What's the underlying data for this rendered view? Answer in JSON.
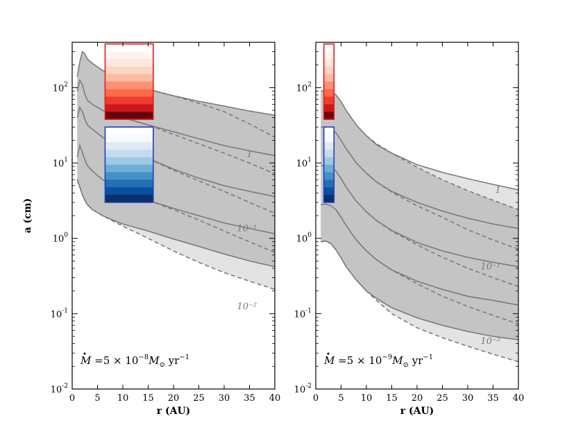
{
  "chart_data": [
    {
      "type": "area",
      "panel": "left",
      "ylabel": "a (cm)",
      "xlabel": "r (AU)",
      "xlim": [
        0,
        40
      ],
      "ylim": [
        0.01,
        400
      ],
      "yscale": "log",
      "x_ticks": [
        "0",
        "5",
        "10",
        "15",
        "20",
        "25",
        "30",
        "35",
        "40"
      ],
      "y_ticks": [
        {
          "base": "10",
          "exp": "2"
        },
        {
          "base": "10",
          "exp": "1"
        },
        {
          "base": "10",
          "exp": "0"
        },
        {
          "base": "10",
          "exp": "-1"
        },
        {
          "base": "10",
          "exp": "-2"
        }
      ],
      "annotation": {
        "lhs": "M",
        "eq": " =5 × 10",
        "exp": "−8",
        "unit": "M",
        "sun": "⊙",
        "yr": " yr",
        "yrexp": "−1"
      },
      "curve_labels": [
        {
          "text": "1",
          "r": 35,
          "a": 13
        },
        {
          "text": "10⁻¹",
          "r": 34.5,
          "a": 1.35
        },
        {
          "text": "10⁻²",
          "r": 34.5,
          "a": 0.125
        }
      ],
      "outer_band": {
        "x": [
          1.0,
          1.5,
          2.0,
          2.5,
          3.0,
          4.0,
          6,
          8,
          10,
          15,
          20,
          25,
          30,
          35,
          40
        ],
        "upper": [
          140,
          220,
          300,
          280,
          240,
          210,
          170,
          140,
          120,
          95,
          78,
          66,
          57,
          49,
          43
        ],
        "lower": [
          6,
          4.8,
          3.8,
          3.2,
          2.8,
          2.4,
          2.0,
          1.7,
          1.45,
          1.0,
          0.68,
          0.48,
          0.35,
          0.27,
          0.21
        ]
      },
      "inner_band": {
        "x": [
          1.0,
          1.5,
          2.0,
          2.5,
          3.0,
          4.0,
          6,
          8,
          10,
          15,
          20,
          25,
          30,
          35,
          40
        ],
        "upper": [
          140,
          220,
          300,
          280,
          240,
          210,
          170,
          140,
          120,
          95,
          78,
          66,
          57,
          49,
          43
        ],
        "lower": [
          6,
          4.8,
          3.8,
          3.2,
          2.8,
          2.4,
          2.0,
          1.75,
          1.55,
          1.25,
          0.98,
          0.78,
          0.62,
          0.5,
          0.42
        ]
      },
      "solid_curves": [
        {
          "x": [
            1.0,
            1.5,
            2.0,
            2.5,
            3.0,
            4.0,
            6,
            8,
            10,
            15,
            20,
            25,
            30,
            35,
            40
          ],
          "y": [
            90,
            125,
            110,
            82,
            68,
            60,
            50,
            44,
            40,
            32,
            26,
            21,
            17,
            14.5,
            12.5
          ]
        },
        {
          "x": [
            1.0,
            1.5,
            2.0,
            2.5,
            3.0,
            4.0,
            6,
            8,
            10,
            15,
            20,
            25,
            30,
            35,
            40
          ],
          "y": [
            40,
            55,
            48,
            38,
            32,
            28,
            22,
            18.5,
            16,
            11.5,
            8.3,
            6.3,
            5.0,
            4.2,
            3.6
          ]
        },
        {
          "x": [
            1.0,
            1.5,
            2.0,
            2.5,
            3.0,
            4.0,
            6,
            8,
            10,
            15,
            20,
            25,
            30,
            35,
            40
          ],
          "y": [
            12,
            17,
            14,
            11,
            9.2,
            7.8,
            6.0,
            5.0,
            4.3,
            3.2,
            2.5,
            2.0,
            1.6,
            1.35,
            1.15
          ]
        }
      ],
      "dashed_curves": [
        {
          "x": [
            10,
            15,
            20,
            25,
            30,
            35,
            40
          ],
          "y": [
            120,
            95,
            78,
            62,
            48,
            33,
            22
          ]
        },
        {
          "x": [
            10,
            15,
            20,
            25,
            30,
            35,
            40
          ],
          "y": [
            40,
            32,
            24,
            18,
            13.5,
            10,
            7.2
          ]
        },
        {
          "x": [
            10,
            15,
            20,
            25,
            30,
            35,
            40
          ],
          "y": [
            16,
            11.5,
            8.0,
            5.8,
            4.2,
            3.0,
            2.15
          ]
        },
        {
          "x": [
            10,
            15,
            20,
            25,
            30,
            35,
            40
          ],
          "y": [
            4.3,
            3.2,
            2.4,
            1.75,
            1.25,
            0.9,
            0.65
          ]
        }
      ],
      "colorbars": [
        {
          "name": "red",
          "border": "#e31a1c",
          "r0": 6.5,
          "r1": 16.0,
          "a_top": 380,
          "a_bottom": 38,
          "colors": [
            "#ffffff",
            "#fff5f0",
            "#fee6de",
            "#fcd4c2",
            "#fcbba1",
            "#fc9272",
            "#fb6a4a",
            "#ef3b2c",
            "#cb181d",
            "#67000d"
          ]
        },
        {
          "name": "blue",
          "border": "#1f3fbf",
          "r0": 6.5,
          "r1": 16.0,
          "a_top": 30,
          "a_bottom": 3.0,
          "colors": [
            "#ffffff",
            "#f7fbff",
            "#deebf7",
            "#c6dbef",
            "#9ecae1",
            "#6baed6",
            "#4292c6",
            "#2171b5",
            "#08519c",
            "#08306b"
          ]
        }
      ]
    },
    {
      "type": "area",
      "panel": "right",
      "ylabel": "",
      "xlabel": "r (AU)",
      "xlim": [
        0,
        40
      ],
      "ylim": [
        0.01,
        400
      ],
      "yscale": "log",
      "x_ticks": [
        "0",
        "5",
        "10",
        "15",
        "20",
        "25",
        "30",
        "35",
        "40"
      ],
      "y_ticks": [
        {
          "base": "10",
          "exp": "2"
        },
        {
          "base": "10",
          "exp": "1"
        },
        {
          "base": "10",
          "exp": "0"
        },
        {
          "base": "10",
          "exp": "-1"
        },
        {
          "base": "10",
          "exp": "-2"
        }
      ],
      "annotation": {
        "lhs": "M",
        "eq": " =5 × 10",
        "exp": "−9",
        "unit": "M",
        "sun": "⊙",
        "yr": " yr",
        "yrexp": "−1"
      },
      "curve_labels": [
        {
          "text": "1",
          "r": 36,
          "a": 4.4
        },
        {
          "text": "10⁻¹",
          "r": 34.5,
          "a": 0.42
        },
        {
          "text": "10⁻²",
          "r": 34.5,
          "a": 0.043
        }
      ],
      "outer_band": {
        "x": [
          1.0,
          2,
          3,
          4,
          5,
          6,
          8,
          10,
          12,
          15,
          20,
          25,
          30,
          35,
          40
        ],
        "upper": [
          90,
          92,
          88,
          80,
          65,
          50,
          32,
          23,
          17.5,
          13.5,
          9.5,
          7.5,
          6.2,
          5.2,
          4.4
        ],
        "lower": [
          0.9,
          0.92,
          0.85,
          0.7,
          0.55,
          0.42,
          0.28,
          0.2,
          0.15,
          0.1,
          0.065,
          0.048,
          0.037,
          0.029,
          0.023
        ]
      },
      "inner_band": {
        "x": [
          1.0,
          2,
          3,
          4,
          5,
          6,
          8,
          10,
          12,
          15,
          20,
          25,
          30,
          35,
          40
        ],
        "upper": [
          90,
          92,
          88,
          80,
          65,
          50,
          32,
          23,
          18,
          13.5,
          8.8,
          6.0,
          4.3,
          3.2,
          2.4
        ],
        "lower": [
          0.9,
          0.92,
          0.85,
          0.7,
          0.55,
          0.42,
          0.28,
          0.2,
          0.16,
          0.12,
          0.088,
          0.07,
          0.058,
          0.05,
          0.045
        ]
      },
      "solid_curves": [
        {
          "x": [
            1.0,
            2,
            3,
            4,
            5,
            6,
            8,
            10,
            12,
            15,
            20,
            25,
            30,
            35,
            40
          ],
          "y": [
            30,
            30,
            28,
            25,
            20,
            15.5,
            10,
            7.3,
            5.6,
            4.2,
            3.0,
            2.3,
            1.85,
            1.55,
            1.35
          ]
        },
        {
          "x": [
            1.0,
            2,
            3,
            4,
            5,
            6,
            8,
            10,
            12,
            15,
            20,
            25,
            30,
            35,
            40
          ],
          "y": [
            9.2,
            9.3,
            8.8,
            7.8,
            6.2,
            4.8,
            3.1,
            2.25,
            1.72,
            1.27,
            0.88,
            0.68,
            0.56,
            0.48,
            0.42
          ]
        },
        {
          "x": [
            1.0,
            2,
            3,
            4,
            5,
            6,
            8,
            10,
            12,
            15,
            20,
            25,
            30,
            35,
            40
          ],
          "y": [
            2.8,
            2.85,
            2.7,
            2.4,
            1.9,
            1.48,
            0.95,
            0.68,
            0.52,
            0.38,
            0.27,
            0.21,
            0.17,
            0.15,
            0.13
          ]
        }
      ],
      "dashed_curves": [
        {
          "x": [
            10,
            12,
            15,
            20,
            25,
            30,
            35,
            40
          ],
          "y": [
            23,
            18,
            13.5,
            8.8,
            6.0,
            4.3,
            3.2,
            2.4
          ]
        },
        {
          "x": [
            10,
            12,
            15,
            20,
            25,
            30,
            35,
            40
          ],
          "y": [
            7.3,
            5.6,
            4.1,
            2.7,
            1.9,
            1.3,
            0.95,
            0.72
          ]
        },
        {
          "x": [
            10,
            12,
            15,
            20,
            25,
            30,
            35,
            40
          ],
          "y": [
            2.25,
            1.72,
            1.25,
            0.82,
            0.56,
            0.4,
            0.3,
            0.23
          ]
        },
        {
          "x": [
            10,
            12,
            15,
            20,
            25,
            30,
            35,
            40
          ],
          "y": [
            0.68,
            0.52,
            0.38,
            0.25,
            0.17,
            0.125,
            0.095,
            0.073
          ]
        }
      ],
      "colorbars": [
        {
          "name": "red",
          "border": "#e31a1c",
          "r0": 1.6,
          "r1": 3.6,
          "a_top": 380,
          "a_bottom": 38,
          "colors": [
            "#ffffff",
            "#fff5f0",
            "#fee6de",
            "#fcd4c2",
            "#fcbba1",
            "#fc9272",
            "#fb6a4a",
            "#ef3b2c",
            "#cb181d",
            "#67000d"
          ]
        },
        {
          "name": "blue",
          "border": "#1f3fbf",
          "r0": 1.6,
          "r1": 3.6,
          "a_top": 30,
          "a_bottom": 3.0,
          "colors": [
            "#ffffff",
            "#f7fbff",
            "#deebf7",
            "#c6dbef",
            "#9ecae1",
            "#6baed6",
            "#4292c6",
            "#2171b5",
            "#08519c",
            "#08306b"
          ]
        }
      ]
    }
  ],
  "colors": {
    "outer_fill": "#e3e3e3",
    "inner_fill": "#c4c4c4",
    "curve": "#7a7a7a"
  }
}
